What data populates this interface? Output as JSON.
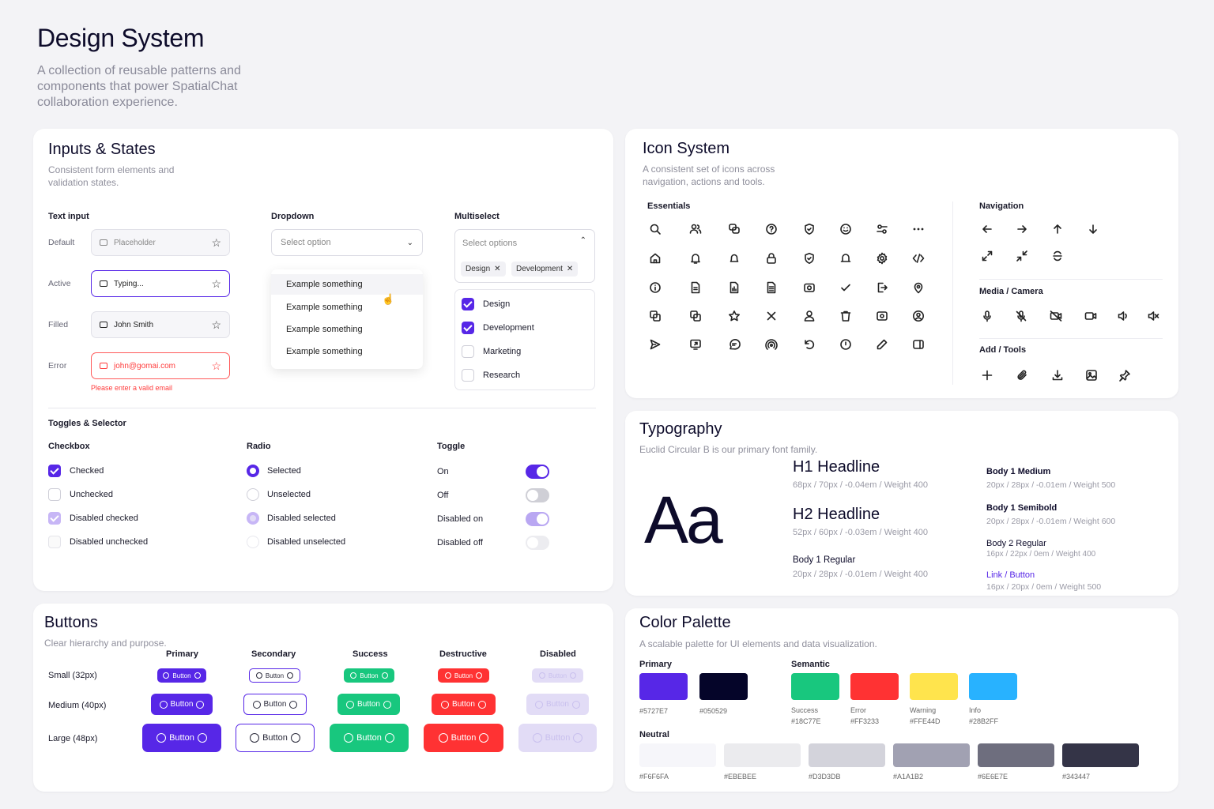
{
  "header": {
    "title": "Design System",
    "subtitle": "A collection of reusable patterns and components that power SpatialChat collaboration experience."
  },
  "inputs": {
    "title": "Inputs & States",
    "subtitle": "Consistent form elements and validation states.",
    "text_input_label": "Text input",
    "rows": [
      {
        "state": "Default",
        "value": "Placeholder"
      },
      {
        "state": "Active",
        "value": "Typing..."
      },
      {
        "state": "Filled",
        "value": "John Smith"
      },
      {
        "state": "Error",
        "value": "john@gomai.com"
      }
    ],
    "error_msg": "Please enter a valid email",
    "dropdown_label": "Dropdown",
    "dropdown_placeholder": "Select option",
    "dropdown_options": [
      "Example something",
      "Example something",
      "Example something",
      "Example something"
    ],
    "multiselect_label": "Multiselect",
    "multiselect_placeholder": "Select options",
    "chips": [
      "Design",
      "Development"
    ],
    "ms_options": [
      "Design",
      "Development",
      "Marketing",
      "Research"
    ]
  },
  "toggles": {
    "title": "Toggles & Selector",
    "checkbox_label": "Checkbox",
    "radio_label": "Radio",
    "toggle_label": "Toggle",
    "checkbox": [
      "Checked",
      "Unchecked",
      "Disabled checked",
      "Disabled unchecked"
    ],
    "radio": [
      "Selected",
      "Unselected",
      "Disabled selected",
      "Disabled unselected"
    ],
    "toggle": [
      "On",
      "Off",
      "Disabled on",
      "Disabled off"
    ]
  },
  "buttons": {
    "title": "Buttons",
    "subtitle": "Clear hierarchy and purpose.",
    "columns": [
      "Primary",
      "Secondary",
      "Success",
      "Destructive",
      "Disabled"
    ],
    "sizes": [
      "Small (32px)",
      "Medium (40px)",
      "Large (48px)"
    ],
    "label": "Button"
  },
  "icons": {
    "title": "Icon System",
    "subtitle": "A consistent set of icons across navigation, actions and tools.",
    "essentials": "Essentials",
    "navigation": "Navigation",
    "media": "Media / Camera",
    "add_tools": "Add / Tools"
  },
  "typography": {
    "title": "Typography",
    "subtitle": "Euclid Circular B is our primary font family.",
    "sample": "Aa",
    "h1": "H1 Headline",
    "h1_spec": "68px / 70px / -0.04em / Weight 400",
    "h2": "H2 Headline",
    "h2_spec": "52px / 60px / -0.03em / Weight 400",
    "b1r": "Body 1 Regular",
    "b1r_spec": "20px / 28px / -0.01em / Weight 400",
    "b1m": "Body 1 Medium",
    "b1m_spec": "20px / 28px / -0.01em / Weight 500",
    "b1s": "Body 1 Semibold",
    "b1s_spec": "20px / 28px / -0.01em / Weight 600",
    "b2r": "Body 2 Regular",
    "b2r_spec": "16px / 22px / 0em / Weight 400",
    "link": "Link / Button",
    "link_spec": "16px / 20px / 0em / Weight 500"
  },
  "colors": {
    "title": "Color Palette",
    "subtitle": "A scalable palette for UI elements and data visualization.",
    "primary_label": "Primary",
    "semantic_label": "Semantic",
    "neutral_label": "Neutral",
    "primary": [
      {
        "hex": "#5727E7"
      },
      {
        "hex": "#050529"
      }
    ],
    "semantic": [
      {
        "name": "Success",
        "hex": "#18C77E"
      },
      {
        "name": "Error",
        "hex": "#FF3233"
      },
      {
        "name": "Warning",
        "hex": "#FFE44D"
      },
      {
        "name": "Info",
        "hex": "#28B2FF"
      }
    ],
    "neutral": [
      {
        "hex": "#F6F6FA"
      },
      {
        "hex": "#EBEBEE"
      },
      {
        "hex": "#D3D3DB"
      },
      {
        "hex": "#A1A1B2"
      },
      {
        "hex": "#6E6E7E"
      },
      {
        "hex": "#343447"
      }
    ]
  }
}
